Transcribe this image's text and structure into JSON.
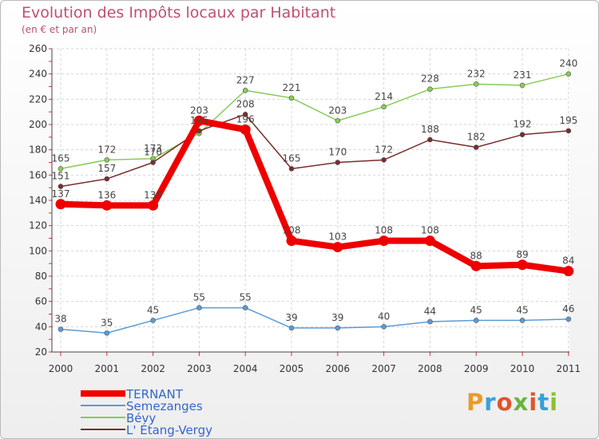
{
  "header": {
    "title": "Evolution des Impôts locaux par Habitant",
    "subtitle": "(en € et par an)"
  },
  "logo": {
    "chars": [
      "P",
      "r",
      "o",
      "x",
      "i",
      "t",
      "i"
    ],
    "colors": [
      "#e89b2a",
      "#3b9fd8",
      "#e0542d",
      "#6ab43e",
      "#e0542d",
      "#3b9fd8",
      "#8fbf2f"
    ]
  },
  "chart_data": {
    "type": "line",
    "title": "Evolution des Impôts locaux par Habitant",
    "subtitle": "(en € et par an)",
    "xlabel": "",
    "ylabel": "",
    "categories": [
      "2000",
      "2001",
      "2002",
      "2003",
      "2004",
      "2005",
      "2006",
      "2007",
      "2008",
      "2009",
      "2010",
      "2011"
    ],
    "ylim": [
      20,
      260
    ],
    "yticks": [
      20,
      40,
      60,
      80,
      100,
      120,
      140,
      160,
      180,
      200,
      220,
      240,
      260
    ],
    "grid": true,
    "legend_position": "bottom-left",
    "series": [
      {
        "name": "Bévy",
        "color": "#88cc55",
        "values": [
          165,
          172,
          173,
          193,
          227,
          221,
          203,
          214,
          228,
          232,
          231,
          240
        ],
        "labels": [
          "165",
          "172",
          "173",
          "",
          "227",
          "221",
          "203",
          "214",
          "228",
          "232",
          "231",
          "240"
        ]
      },
      {
        "name": "L' Étang-Vergy",
        "color": "#7b2c2c",
        "values": [
          151,
          157,
          170,
          195,
          208,
          165,
          170,
          172,
          188,
          182,
          192,
          195
        ],
        "labels": [
          "151",
          "157",
          "170",
          "195",
          "208",
          "165",
          "170",
          "172",
          "188",
          "182",
          "192",
          "195"
        ]
      },
      {
        "name": "Semezanges",
        "color": "#5b9bd5",
        "values": [
          38,
          35,
          45,
          55,
          55,
          39,
          39,
          40,
          44,
          45,
          45,
          46
        ],
        "labels": [
          "38",
          "35",
          "45",
          "55",
          "55",
          "39",
          "39",
          "40",
          "44",
          "45",
          "45",
          "46"
        ]
      },
      {
        "name": "TERNANT",
        "color": "#ee0000",
        "values": [
          137,
          136,
          136,
          203,
          196,
          108,
          103,
          108,
          108,
          88,
          89,
          84
        ],
        "labels": [
          "137",
          "136",
          "136",
          "203",
          "196",
          "108",
          "103",
          "108",
          "108",
          "88",
          "89",
          "84"
        ]
      }
    ],
    "legend": [
      "TERNANT",
      "Semezanges",
      "Bévy",
      "L' Étang-Vergy"
    ]
  }
}
